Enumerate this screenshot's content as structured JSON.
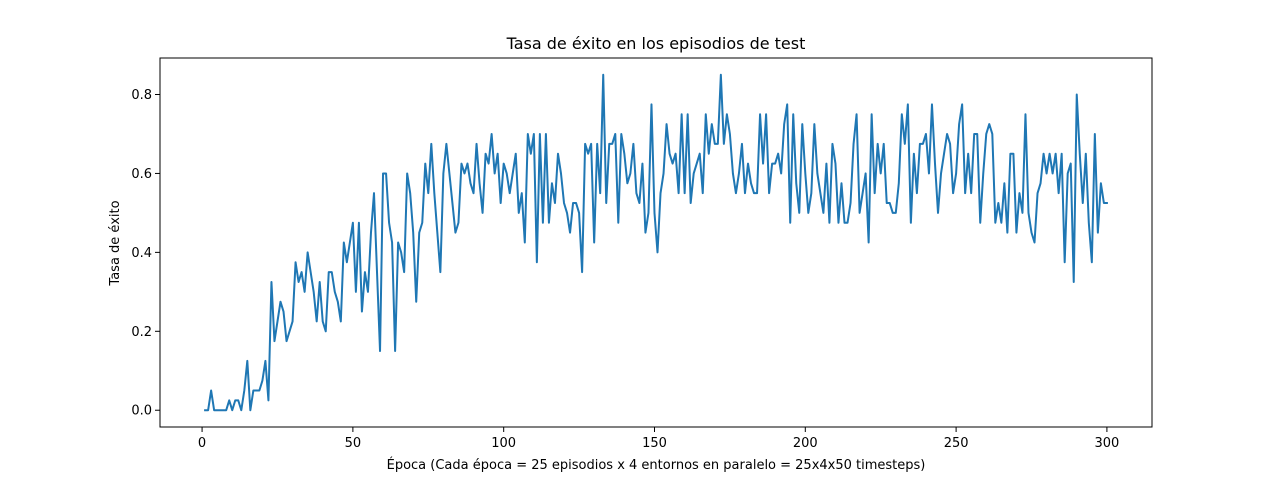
{
  "chart_data": {
    "type": "line",
    "title": "Tasa de éxito en los episodios de test",
    "xlabel": "Época (Cada época = 25 episodios x 4 entornos en paralelo = 25x4x50 timesteps)",
    "ylabel": "Tasa de éxito",
    "xlim": [
      -13.95,
      314.95
    ],
    "ylim": [
      -0.0425,
      0.8925
    ],
    "xticks": [
      0,
      50,
      100,
      150,
      200,
      250,
      300
    ],
    "xtick_labels": [
      "0",
      "50",
      "100",
      "150",
      "200",
      "250",
      "300"
    ],
    "yticks": [
      0.0,
      0.2,
      0.4,
      0.6,
      0.8
    ],
    "ytick_labels": [
      "0.0",
      "0.2",
      "0.4",
      "0.6",
      "0.8"
    ],
    "grid": false,
    "line_color": "#1f77b4",
    "series": [
      {
        "x_start": 1,
        "x_step": 1,
        "values": [
          0.0,
          0.0,
          0.05,
          0.0,
          0.0,
          0.0,
          0.0,
          0.0,
          0.025,
          0.0,
          0.025,
          0.025,
          0.0,
          0.05,
          0.125,
          0.0,
          0.05,
          0.05,
          0.05,
          0.075,
          0.125,
          0.025,
          0.325,
          0.175,
          0.225,
          0.275,
          0.25,
          0.175,
          0.2,
          0.225,
          0.375,
          0.325,
          0.35,
          0.3,
          0.4,
          0.35,
          0.3,
          0.225,
          0.325,
          0.225,
          0.2,
          0.35,
          0.35,
          0.3,
          0.275,
          0.225,
          0.425,
          0.375,
          0.425,
          0.475,
          0.3,
          0.475,
          0.25,
          0.35,
          0.3,
          0.45,
          0.55,
          0.35,
          0.15,
          0.6,
          0.6,
          0.475,
          0.425,
          0.15,
          0.425,
          0.4,
          0.35,
          0.6,
          0.55,
          0.45,
          0.275,
          0.45,
          0.475,
          0.625,
          0.55,
          0.675,
          0.55,
          0.45,
          0.35,
          0.6,
          0.675,
          0.6,
          0.525,
          0.45,
          0.475,
          0.625,
          0.6,
          0.625,
          0.575,
          0.55,
          0.675,
          0.575,
          0.5,
          0.65,
          0.625,
          0.7,
          0.6,
          0.65,
          0.525,
          0.625,
          0.6,
          0.55,
          0.6,
          0.65,
          0.5,
          0.55,
          0.425,
          0.7,
          0.65,
          0.7,
          0.375,
          0.7,
          0.475,
          0.7,
          0.475,
          0.575,
          0.525,
          0.65,
          0.6,
          0.525,
          0.5,
          0.45,
          0.525,
          0.525,
          0.5,
          0.35,
          0.675,
          0.65,
          0.675,
          0.425,
          0.675,
          0.55,
          0.85,
          0.525,
          0.675,
          0.675,
          0.7,
          0.475,
          0.7,
          0.65,
          0.575,
          0.6,
          0.675,
          0.55,
          0.525,
          0.625,
          0.45,
          0.5,
          0.775,
          0.5,
          0.4,
          0.55,
          0.6,
          0.725,
          0.65,
          0.625,
          0.65,
          0.55,
          0.75,
          0.55,
          0.75,
          0.525,
          0.6,
          0.625,
          0.65,
          0.55,
          0.75,
          0.65,
          0.725,
          0.675,
          0.675,
          0.85,
          0.675,
          0.75,
          0.7,
          0.6,
          0.55,
          0.6,
          0.675,
          0.55,
          0.625,
          0.575,
          0.55,
          0.55,
          0.75,
          0.625,
          0.75,
          0.55,
          0.625,
          0.625,
          0.65,
          0.6,
          0.725,
          0.775,
          0.475,
          0.75,
          0.575,
          0.5,
          0.725,
          0.6,
          0.5,
          0.55,
          0.725,
          0.6,
          0.55,
          0.5,
          0.625,
          0.475,
          0.675,
          0.625,
          0.475,
          0.575,
          0.475,
          0.475,
          0.525,
          0.675,
          0.75,
          0.5,
          0.55,
          0.6,
          0.425,
          0.75,
          0.55,
          0.675,
          0.6,
          0.675,
          0.525,
          0.525,
          0.5,
          0.5,
          0.575,
          0.75,
          0.675,
          0.775,
          0.475,
          0.65,
          0.55,
          0.675,
          0.675,
          0.7,
          0.6,
          0.775,
          0.625,
          0.5,
          0.6,
          0.65,
          0.7,
          0.675,
          0.55,
          0.6,
          0.725,
          0.775,
          0.55,
          0.65,
          0.55,
          0.7,
          0.7,
          0.475,
          0.6,
          0.7,
          0.725,
          0.7,
          0.475,
          0.525,
          0.475,
          0.575,
          0.45,
          0.65,
          0.65,
          0.45,
          0.55,
          0.5,
          0.75,
          0.5,
          0.45,
          0.425,
          0.55,
          0.575,
          0.65,
          0.6,
          0.65,
          0.6,
          0.65,
          0.55,
          0.65,
          0.375,
          0.6,
          0.625,
          0.325,
          0.8,
          0.65,
          0.525,
          0.65,
          0.475,
          0.375,
          0.7,
          0.45,
          0.575,
          0.525,
          0.525
        ]
      }
    ]
  }
}
